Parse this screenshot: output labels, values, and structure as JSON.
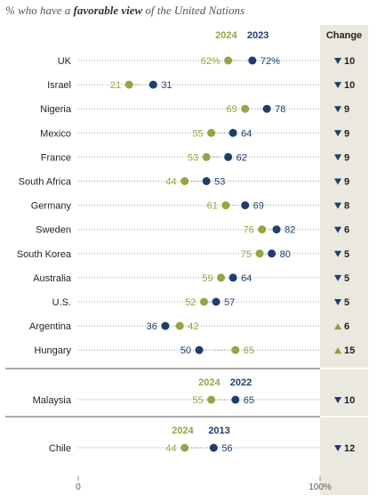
{
  "title": {
    "prefix": "% who have a ",
    "bold": "favorable view",
    "suffix": " of the United Nations"
  },
  "colors": {
    "new": "#94a545",
    "old": "#1e3e6b",
    "change_bg": "#ebe8df",
    "up": "#8a9a45",
    "down": "#1e3e6b"
  },
  "change_header": "Change",
  "chart_data": {
    "type": "dot-plot",
    "title": "% who have a favorable view of the United Nations",
    "xlim": [
      0,
      100
    ],
    "x_ticks": [
      "0",
      "100%"
    ],
    "groups": [
      {
        "new_year": "2024",
        "old_year": "2023",
        "rows": [
          {
            "country": "UK",
            "new": 62,
            "old": 72,
            "new_label": "62%",
            "old_label": "72%",
            "change": "10",
            "dir": "down"
          },
          {
            "country": "Israel",
            "new": 21,
            "old": 31,
            "new_label": "21",
            "old_label": "31",
            "change": "10",
            "dir": "down"
          },
          {
            "country": "Nigeria",
            "new": 69,
            "old": 78,
            "new_label": "69",
            "old_label": "78",
            "change": "9",
            "dir": "down"
          },
          {
            "country": "Mexico",
            "new": 55,
            "old": 64,
            "new_label": "55",
            "old_label": "64",
            "change": "9",
            "dir": "down"
          },
          {
            "country": "France",
            "new": 53,
            "old": 62,
            "new_label": "53",
            "old_label": "62",
            "change": "9",
            "dir": "down"
          },
          {
            "country": "South Africa",
            "new": 44,
            "old": 53,
            "new_label": "44",
            "old_label": "53",
            "change": "9",
            "dir": "down"
          },
          {
            "country": "Germany",
            "new": 61,
            "old": 69,
            "new_label": "61",
            "old_label": "69",
            "change": "8",
            "dir": "down"
          },
          {
            "country": "Sweden",
            "new": 76,
            "old": 82,
            "new_label": "76",
            "old_label": "82",
            "change": "6",
            "dir": "down"
          },
          {
            "country": "South Korea",
            "new": 75,
            "old": 80,
            "new_label": "75",
            "old_label": "80",
            "change": "5",
            "dir": "down"
          },
          {
            "country": "Australia",
            "new": 59,
            "old": 64,
            "new_label": "59",
            "old_label": "64",
            "change": "5",
            "dir": "down"
          },
          {
            "country": "U.S.",
            "new": 52,
            "old": 57,
            "new_label": "52",
            "old_label": "57",
            "change": "5",
            "dir": "down"
          },
          {
            "country": "Argentina",
            "new": 42,
            "old": 36,
            "new_label": "42",
            "old_label": "36",
            "change": "6",
            "dir": "up"
          },
          {
            "country": "Hungary",
            "new": 65,
            "old": 50,
            "new_label": "65",
            "old_label": "50",
            "change": "15",
            "dir": "up"
          }
        ]
      },
      {
        "new_year": "2024",
        "old_year": "2022",
        "rows": [
          {
            "country": "Malaysia",
            "new": 55,
            "old": 65,
            "new_label": "55",
            "old_label": "65",
            "change": "10",
            "dir": "down"
          }
        ]
      },
      {
        "new_year": "2024",
        "old_year": "2013",
        "rows": [
          {
            "country": "Chile",
            "new": 44,
            "old": 56,
            "new_label": "44",
            "old_label": "56",
            "change": "12",
            "dir": "down"
          }
        ]
      }
    ]
  }
}
